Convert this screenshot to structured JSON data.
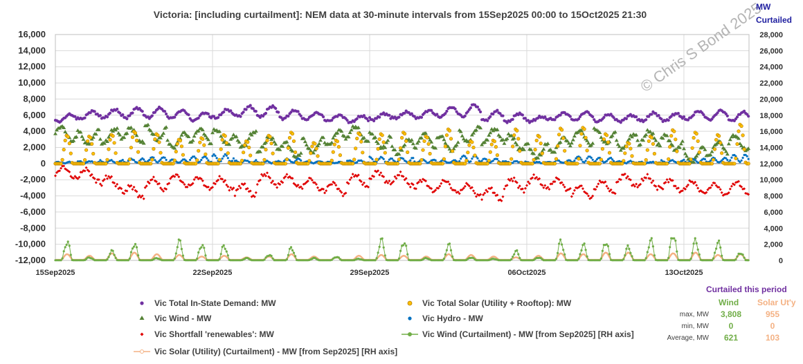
{
  "chart_data": {
    "type": "line",
    "title": "Victoria:  [including curtailment]:  NEM data at 30-minute intervals from 15Sep2025 00:00 to 15Oct2025 21:30",
    "left_axis": {
      "min": -12000,
      "max": 16000,
      "step": 2000,
      "tick_labels": [
        "-12,000",
        "-10,000",
        "-8,000",
        "-6,000",
        "-4,000",
        "-2,000",
        "0",
        "2,000",
        "4,000",
        "6,000",
        "8,000",
        "10,000",
        "12,000",
        "14,000",
        "16,000"
      ]
    },
    "right_axis": {
      "label_line1": "MW",
      "label_line2": "Curtailed",
      "min": 0,
      "max": 28000,
      "step": 2000,
      "tick_labels": [
        "0",
        "2,000",
        "4,000",
        "6,000",
        "8,000",
        "10,000",
        "12,000",
        "14,000",
        "16,000",
        "18,000",
        "20,000",
        "22,000",
        "24,000",
        "26,000",
        "28,000"
      ]
    },
    "x_axis": {
      "start_day": 0,
      "end_day": 30.9,
      "ticks_day": [
        0,
        7,
        14,
        21,
        28
      ],
      "tick_labels": [
        "15Sep2025",
        "22Sep2025",
        "29Sep2025",
        "06Oct2025",
        "13Oct2025"
      ]
    },
    "series": [
      {
        "name": "Vic Total In-State Demand: MW",
        "axis": "left",
        "color": "#7030a0",
        "marker": "circle",
        "daily_min": [
          4700,
          5000,
          5100,
          5000,
          5000,
          5100,
          4800,
          5100,
          5200,
          5100,
          5000,
          5000,
          4900,
          4700,
          5000,
          5200,
          5100,
          5100,
          5000,
          4700,
          4600,
          4900,
          5000,
          4800,
          4700,
          4800,
          4700,
          4800,
          4900,
          4800,
          4700
        ],
        "daily_peak": [
          6100,
          6500,
          6700,
          6900,
          6900,
          6600,
          6300,
          6700,
          7100,
          7100,
          6600,
          6300,
          6000,
          5900,
          6200,
          6400,
          6600,
          7000,
          7300,
          6500,
          6200,
          5800,
          6300,
          6400,
          6100,
          6000,
          6300,
          6200,
          6500,
          6600,
          6400
        ]
      },
      {
        "name": "Vic Total Solar (Utility + Rooftop): MW",
        "axis": "left",
        "color": "#ffc000",
        "marker": "circle",
        "daily_peak": [
          3500,
          3400,
          3600,
          4000,
          3700,
          3000,
          3200,
          3600,
          2800,
          3500,
          3900,
          2600,
          2900,
          3800,
          3700,
          3900,
          3400,
          4300,
          2800,
          2900,
          4300,
          3500,
          4400,
          4500,
          3700,
          2600,
          3400,
          4200,
          3900,
          3600,
          4900
        ]
      },
      {
        "name": "Vic Wind -  MW",
        "axis": "left",
        "color": "#548235",
        "marker": "triangle",
        "daily_level": [
          3700,
          3300,
          3400,
          3500,
          3800,
          2900,
          3400,
          3300,
          3000,
          2400,
          1700,
          2300,
          3200,
          3700,
          2800,
          2100,
          2800,
          2500,
          3600,
          3400,
          2600,
          1600,
          2300,
          3200,
          3400,
          2700,
          3100,
          2600,
          1100,
          1800,
          2600
        ]
      },
      {
        "name": "Vic Hydro -  MW",
        "axis": "left",
        "color": "#0070c0",
        "marker": "circle",
        "daily_level": [
          200,
          300,
          400,
          600,
          800,
          500,
          900,
          1100,
          400,
          300,
          600,
          300,
          200,
          400,
          800,
          700,
          500,
          400,
          1000,
          600,
          300,
          200,
          400,
          900,
          700,
          300,
          200,
          400,
          600,
          700,
          1100
        ]
      },
      {
        "name": "Vic Shortfall 'renewables': MW",
        "axis": "left",
        "color": "#e00000",
        "marker": "diamond",
        "daily_level": [
          -1100,
          -1400,
          -2300,
          -3500,
          -2600,
          -2100,
          -2400,
          -2500,
          -3300,
          -2000,
          -2200,
          -2600,
          -3100,
          -2100,
          -1700,
          -2000,
          -2700,
          -2800,
          -3300,
          -3800,
          -2600,
          -2300,
          -2600,
          -3500,
          -2900,
          -2100,
          -2300,
          -2700,
          -2900,
          -3200,
          -3000
        ]
      },
      {
        "name": "Vic Wind (Curtailment) -  MW [from Sep2025] [RH axis]",
        "axis": "right",
        "color": "#70ad47",
        "marker": "circle-line",
        "daily_peak": [
          2700,
          400,
          1300,
          2400,
          300,
          2700,
          2300,
          2100,
          300,
          800,
          1800,
          300,
          500,
          200,
          2900,
          2700,
          300,
          2200,
          400,
          200,
          1300,
          400,
          2700,
          2200,
          2700,
          1900,
          2900,
          3800,
          2800,
          2600,
          1100
        ]
      },
      {
        "name": "Vic Solar (Utility) (Curtailment) -  MW [from Sep2025] [RH axis]",
        "axis": "right",
        "color": "#f4b183",
        "marker": "circle-line",
        "daily_peak": [
          700,
          500,
          800,
          900,
          700,
          600,
          400,
          500,
          300,
          400,
          700,
          400,
          300,
          500,
          600,
          500,
          400,
          700,
          600,
          400,
          300,
          500,
          800,
          700,
          900,
          900,
          700,
          800,
          900,
          600,
          700
        ]
      }
    ],
    "legend": [
      {
        "label": "Vic Total In-State Demand: MW",
        "color": "#7030a0",
        "marker": "circle"
      },
      {
        "label": "Vic Total Solar (Utility + Rooftop): MW",
        "color": "#ffc000",
        "marker": "circle-outlined"
      },
      {
        "label": "Vic Wind -  MW",
        "color": "#548235",
        "marker": "triangle"
      },
      {
        "label": "Vic Hydro -  MW",
        "color": "#0070c0",
        "marker": "circle"
      },
      {
        "label": "Vic Shortfall 'renewables': MW",
        "color": "#e00000",
        "marker": "diamond"
      },
      {
        "label": "Vic Wind (Curtailment) -  MW [from Sep2025] [RH axis]",
        "color": "#70ad47",
        "marker": "circle-line"
      },
      {
        "label": "Vic Solar (Utility) (Curtailment) -  MW [from Sep2025] [RH axis]",
        "color": "#f4b183",
        "marker": "circle-line-open"
      }
    ],
    "watermark": "© Chris S Bond  2025"
  },
  "stats": {
    "title": "Curtailed this period",
    "col_wind": "Wind",
    "col_solar": "Solar Ut'y",
    "wind_color": "#70ad47",
    "solar_color": "#f4b183",
    "rows": [
      {
        "label": "max, MW",
        "wind": "3,808",
        "solar": "955"
      },
      {
        "label": "min, MW",
        "wind": "0",
        "solar": "0"
      },
      {
        "label": "Average, MW",
        "wind": "621",
        "solar": "103"
      }
    ]
  }
}
